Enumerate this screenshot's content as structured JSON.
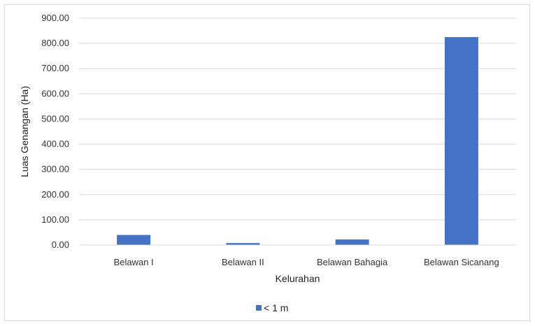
{
  "chart_data": {
    "type": "bar",
    "categories": [
      "Belawan I",
      "Belawan II",
      "Belawan Bahagia",
      "Belawan Sicanang"
    ],
    "series": [
      {
        "name": "< 1 m",
        "values": [
          40,
          8,
          22,
          825
        ],
        "color": "#4472c4"
      }
    ],
    "xlabel": "Kelurahan",
    "ylabel": "Luas Genangan (Ha)",
    "ylim": [
      0,
      900
    ],
    "yticks": [
      "0.00",
      "100.00",
      "200.00",
      "300.00",
      "400.00",
      "500.00",
      "600.00",
      "700.00",
      "800.00",
      "900.00"
    ],
    "grid": true,
    "gridColor": "#d9d9d9",
    "legend": "bottom-center"
  }
}
